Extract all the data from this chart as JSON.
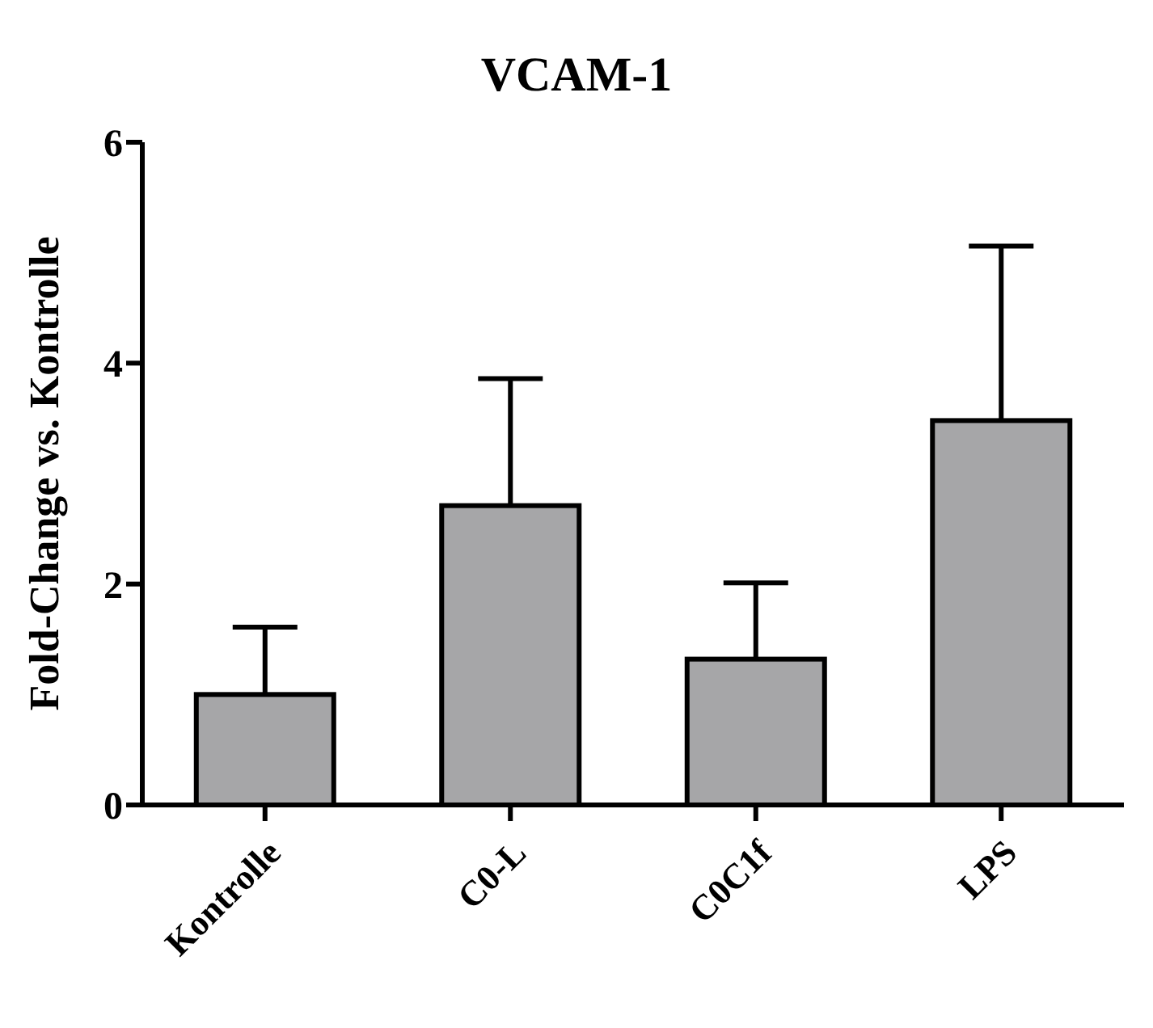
{
  "chart_data": {
    "type": "bar",
    "title": "VCAM-1",
    "ylabel": "Fold-Change vs. Kontrolle",
    "categories": [
      "Kontrolle",
      "C0-L",
      "C0C1f",
      "LPS"
    ],
    "values": [
      1.0,
      2.71,
      1.32,
      3.48
    ],
    "errors": [
      [
        1.0,
        1.61
      ],
      [
        2.71,
        3.86
      ],
      [
        1.32,
        2.01
      ],
      [
        3.48,
        5.06
      ]
    ],
    "color": "#a6a6a8",
    "ylim": [
      0,
      6
    ],
    "yticks": [
      0,
      2,
      4,
      6
    ],
    "grid": false,
    "legend": false
  }
}
